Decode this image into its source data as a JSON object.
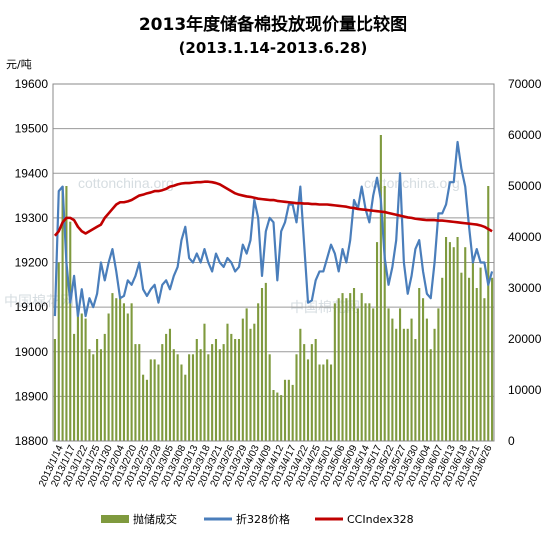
{
  "chart_data": {
    "type": "bar+line",
    "title": "2013年度储备棉投放现价量比较图",
    "subtitle": "(2013.1.14-2013.6.28)",
    "ylabel": "元/吨",
    "ylim": [
      18800,
      19600
    ],
    "y_ticks": [
      18800,
      18900,
      19000,
      19100,
      19200,
      19300,
      19400,
      19500,
      19600
    ],
    "y2lim": [
      0,
      70000
    ],
    "y2_ticks": [
      0,
      10000,
      20000,
      30000,
      40000,
      50000,
      60000,
      70000
    ],
    "grid": "horizontal",
    "legend_position": "bottom",
    "watermarks": [
      "cottonchina.org",
      "cottonchina.org",
      "中国棉花网",
      "中国棉花网"
    ],
    "x_tick_labels": [
      "2013/1/14",
      "2013/1/17",
      "2013/1/22",
      "2013/1/25",
      "2013/1/30",
      "2013/2/04",
      "2013/2/20",
      "2013/2/25",
      "2013/2/28",
      "2013/3/05",
      "2013/3/08",
      "2013/3/13",
      "2013/3/18",
      "2013/3/21",
      "2013/3/26",
      "2013/3/29",
      "2013/4/03",
      "2013/4/09",
      "2013/4/12",
      "2013/4/17",
      "2013/4/22",
      "2013/4/25",
      "2013/5/01",
      "2013/5/06",
      "2013/5/09",
      "2013/5/14",
      "2013/5/17",
      "2013/5/22",
      "2013/5/27",
      "2013/5/30",
      "2013/6/04",
      "2013/6/07",
      "2013/6/13",
      "2013/6/18",
      "2013/6/21",
      "2013/6/26"
    ],
    "series": [
      {
        "name": "抛储成交",
        "type": "bar",
        "axis": "right",
        "color": "#7f9a3e",
        "values": [
          20000,
          35000,
          50000,
          50000,
          43000,
          21000,
          26000,
          25000,
          24000,
          18000,
          17000,
          20000,
          18000,
          21000,
          25000,
          29000,
          28000,
          28000,
          27000,
          25000,
          27000,
          19000,
          19000,
          13000,
          12000,
          16000,
          16000,
          15000,
          19000,
          21000,
          22000,
          18000,
          17000,
          15000,
          13000,
          17000,
          17000,
          20000,
          18000,
          23000,
          17000,
          19000,
          20000,
          18000,
          19000,
          23000,
          21000,
          20000,
          20000,
          24000,
          26000,
          22000,
          23000,
          27000,
          30000,
          31000,
          17000,
          10000,
          9500,
          9000,
          12000,
          12000,
          11000,
          17000,
          22000,
          19000,
          16000,
          19000,
          20000,
          15000,
          15000,
          16000,
          15000,
          27000,
          28000,
          29000,
          28000,
          29000,
          30000,
          26000,
          29000,
          27000,
          27000,
          26000,
          39000,
          60000,
          50000,
          26000,
          24000,
          22000,
          26000,
          22000,
          22000,
          24000,
          20000,
          30000,
          28000,
          24000,
          18000,
          22000,
          26000,
          32000,
          40000,
          39000,
          38000,
          40000,
          33000,
          38000,
          32000,
          36000,
          30000,
          34000,
          28000,
          50000,
          32000
        ]
      },
      {
        "name": "折328价格",
        "type": "line",
        "axis": "left",
        "color": "#4a7ebb",
        "values": [
          19080,
          19360,
          19370,
          19200,
          19110,
          19170,
          19080,
          19140,
          19080,
          19120,
          19100,
          19130,
          19200,
          19160,
          19200,
          19230,
          19180,
          19120,
          19125,
          19160,
          19150,
          19170,
          19200,
          19140,
          19125,
          19140,
          19150,
          19110,
          19150,
          19160,
          19140,
          19170,
          19190,
          19250,
          19280,
          19210,
          19200,
          19220,
          19200,
          19230,
          19200,
          19180,
          19220,
          19200,
          19190,
          19210,
          19200,
          19180,
          19190,
          19240,
          19220,
          19250,
          19340,
          19300,
          19170,
          19270,
          19300,
          19290,
          19160,
          19270,
          19290,
          19330,
          19330,
          19290,
          19370,
          19240,
          19110,
          19115,
          19160,
          19180,
          19180,
          19210,
          19240,
          19220,
          19180,
          19230,
          19200,
          19250,
          19340,
          19320,
          19370,
          19320,
          19290,
          19350,
          19390,
          19340,
          19210,
          19150,
          19190,
          19250,
          19400,
          19200,
          19130,
          19170,
          19230,
          19250,
          19180,
          19130,
          19120,
          19200,
          19310,
          19310,
          19330,
          19380,
          19380,
          19470,
          19410,
          19370,
          19280,
          19200,
          19230,
          19200,
          19200,
          19150,
          19180
        ]
      },
      {
        "name": "CCIndex328",
        "type": "line",
        "axis": "left",
        "color": "#c00000",
        "values": [
          19260,
          19270,
          19290,
          19300,
          19300,
          19295,
          19280,
          19270,
          19265,
          19270,
          19275,
          19280,
          19285,
          19300,
          19310,
          19320,
          19330,
          19335,
          19335,
          19337,
          19340,
          19345,
          19350,
          19352,
          19355,
          19357,
          19360,
          19360,
          19362,
          19365,
          19370,
          19372,
          19375,
          19377,
          19378,
          19378,
          19379,
          19380,
          19380,
          19381,
          19381,
          19380,
          19378,
          19375,
          19370,
          19365,
          19360,
          19355,
          19352,
          19350,
          19348,
          19347,
          19345,
          19343,
          19342,
          19341,
          19340,
          19340,
          19338,
          19337,
          19336,
          19335,
          19334,
          19333,
          19333,
          19332,
          19332,
          19331,
          19331,
          19330,
          19330,
          19330,
          19329,
          19328,
          19327,
          19326,
          19325,
          19323,
          19322,
          19320,
          19319,
          19318,
          19317,
          19316,
          19315,
          19314,
          19313,
          19311,
          19309,
          19307,
          19305,
          19303,
          19301,
          19300,
          19298,
          19297,
          19296,
          19295,
          19295,
          19295,
          19294,
          19294,
          19293,
          19292,
          19291,
          19290,
          19289,
          19288,
          19287,
          19286,
          19285,
          19283,
          19280,
          19275,
          19270
        ]
      }
    ]
  }
}
